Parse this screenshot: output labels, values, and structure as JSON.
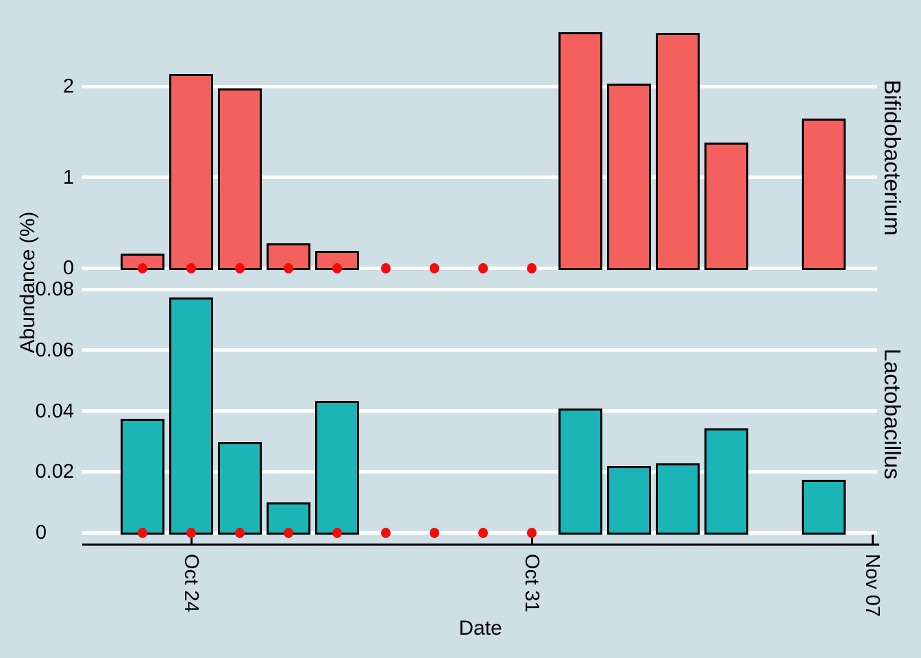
{
  "chart_data": {
    "type": "bar",
    "title": "",
    "xlabel": "Date",
    "ylabel": "Abundance (%)",
    "legend": "none",
    "grid": "white horizontal gridlines on light blue panel",
    "x": [
      "Oct 23",
      "Oct 24",
      "Oct 25",
      "Oct 26",
      "Oct 27",
      "Oct 28",
      "Oct 29",
      "Oct 30",
      "Oct 31",
      "Nov 01",
      "Nov 02",
      "Nov 03",
      "Nov 04",
      "Nov 05",
      "Nov 06",
      "Nov 07"
    ],
    "x_tick_labels": [
      {
        "label": "Oct 24",
        "index": 1
      },
      {
        "label": "Oct 31",
        "index": 8
      },
      {
        "label": "Nov 07",
        "index": 15
      }
    ],
    "facets": [
      {
        "label": "Bifidobacterium",
        "bar_color": "#F4605D",
        "ylim": [
          0,
          2.75
        ],
        "y_ticks": [
          {
            "v": 0,
            "label": "0"
          },
          {
            "v": 1,
            "label": "1"
          },
          {
            "v": 2,
            "label": "2"
          }
        ],
        "values": [
          0.15,
          2.13,
          1.97,
          0.26,
          0.18,
          null,
          null,
          null,
          null,
          2.59,
          2.02,
          2.58,
          1.37,
          null,
          1.64,
          null
        ],
        "zero_dot_indices": [
          0,
          1,
          2,
          3,
          4,
          5,
          6,
          7,
          8
        ]
      },
      {
        "label": "Lactobacillus",
        "bar_color": "#1BB4B7",
        "ylim": [
          0,
          0.085
        ],
        "y_ticks": [
          {
            "v": 0,
            "label": "0"
          },
          {
            "v": 0.02,
            "label": "0.02"
          },
          {
            "v": 0.04,
            "label": "0.04"
          },
          {
            "v": 0.06,
            "label": "0.06"
          },
          {
            "v": 0.08,
            "label": "0.08"
          }
        ],
        "values": [
          0.037,
          0.077,
          0.0295,
          0.0095,
          0.043,
          null,
          null,
          null,
          null,
          0.0405,
          0.0215,
          0.0225,
          0.034,
          null,
          0.017,
          null
        ],
        "zero_dot_indices": [
          0,
          1,
          2,
          3,
          4,
          5,
          6,
          7,
          8
        ]
      }
    ],
    "colors": {
      "background": "#CEDFE6",
      "gridline": "#FFFFFF",
      "bar_outline": "#000000",
      "axis_line": "#000000",
      "text": "#000000",
      "zero_dot": "#F20D0D"
    }
  }
}
